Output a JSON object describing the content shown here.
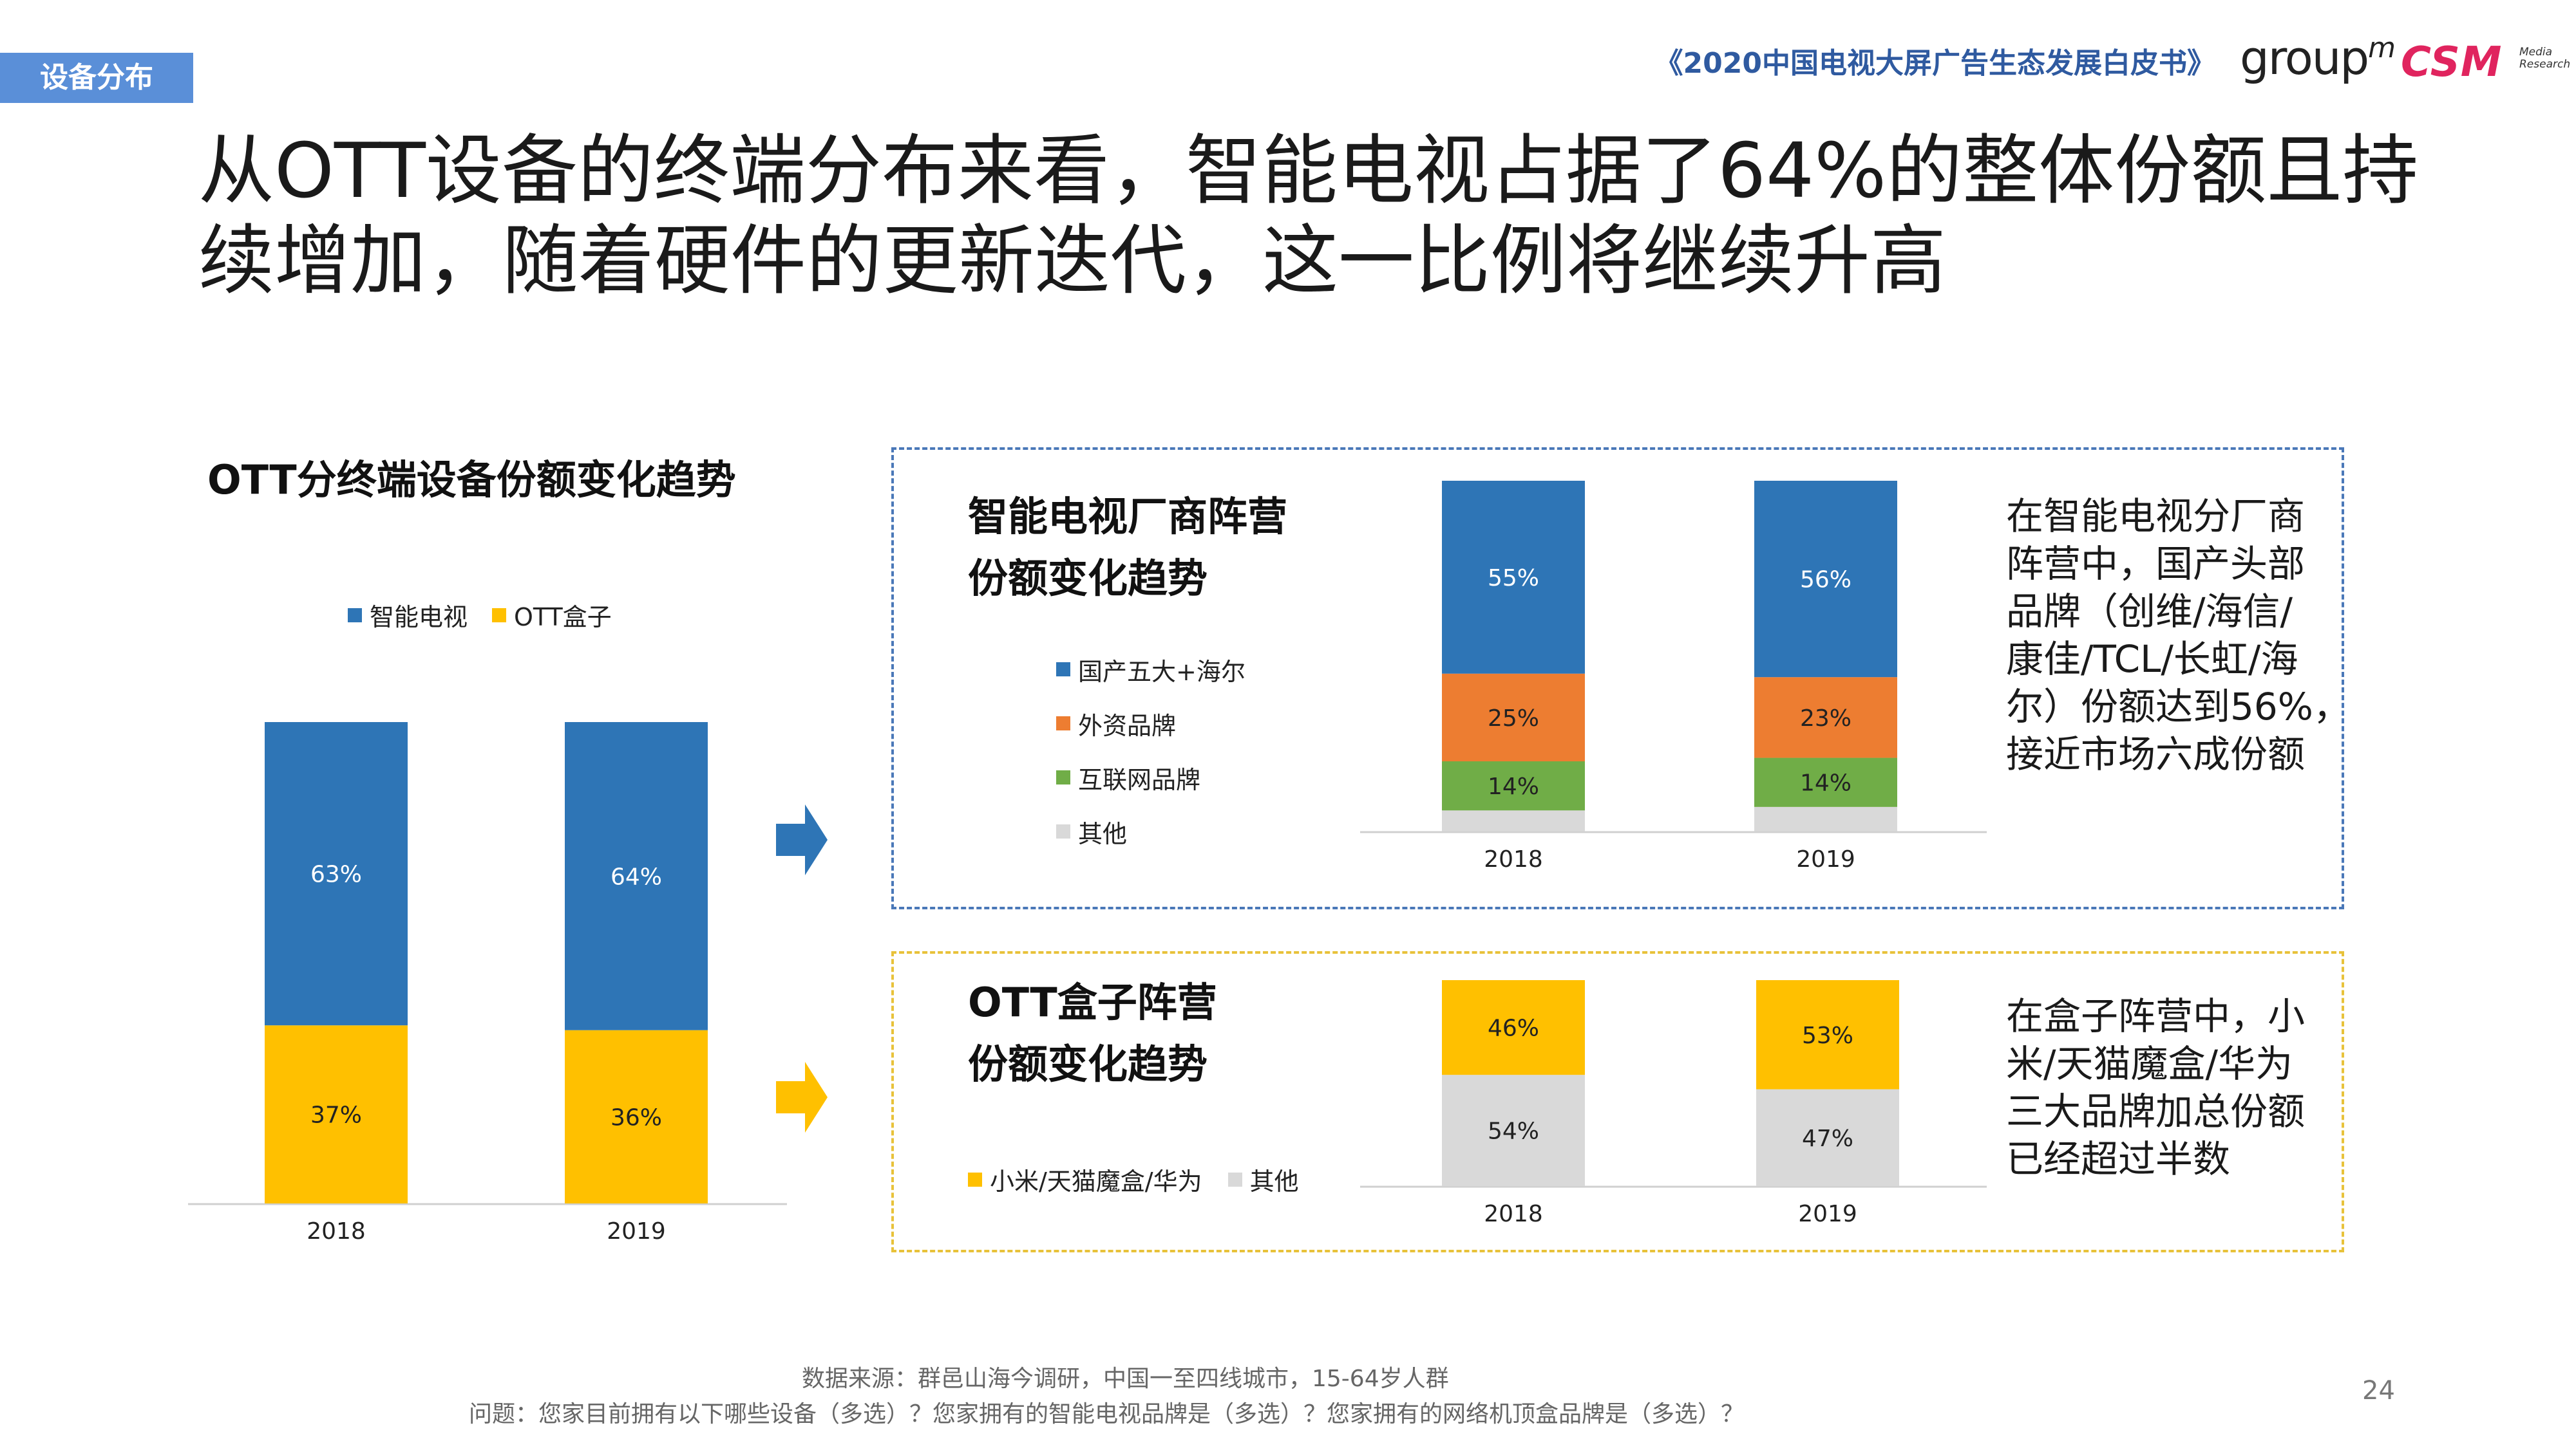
{
  "header": {
    "section_tag": "设备分布",
    "report_title": "《2020中国电视大屏广告生态发展白皮书》",
    "logo_groupm": "group",
    "logo_groupm_m": "m",
    "logo_csm": "CSM",
    "logo_csm_sub1": "Media",
    "logo_csm_sub2": "Research"
  },
  "headline_line1": "从OTT设备的终端分布来看，智能电视占据了64%的整体份额且持",
  "headline_line2": "续增加，随着硬件的更新迭代，这一比例将继续升高",
  "colors": {
    "blue": "#2e75b6",
    "yellow": "#ffc000",
    "orange": "#ed7d31",
    "green": "#70ad47",
    "gray": "#d9d9d9",
    "arrow_blue": "#2e75b6",
    "arrow_yellow": "#ffc000"
  },
  "chart_data": [
    {
      "type": "bar",
      "stacked": true,
      "title": "OTT分终端设备份额变化趋势",
      "categories": [
        "2018",
        "2019"
      ],
      "series": [
        {
          "name": "OTT盒子",
          "values": [
            37,
            36
          ],
          "labels": [
            "37%",
            "36%"
          ]
        },
        {
          "name": "智能电视",
          "values": [
            63,
            64
          ],
          "labels": [
            "63%",
            "64%"
          ]
        }
      ],
      "ylim": [
        0,
        100
      ],
      "legend": "top"
    },
    {
      "type": "bar",
      "stacked": true,
      "title": "智能电视厂商阵营",
      "title2": "份额变化趋势",
      "categories": [
        "2018",
        "2019"
      ],
      "series": [
        {
          "name": "其他",
          "values": [
            6,
            7
          ],
          "labels": [
            "",
            ""
          ]
        },
        {
          "name": "互联网品牌",
          "values": [
            14,
            14
          ],
          "labels": [
            "14%",
            "14%"
          ]
        },
        {
          "name": "外资品牌",
          "values": [
            25,
            23
          ],
          "labels": [
            "25%",
            "23%"
          ]
        },
        {
          "name": "国产五大+海尔",
          "values": [
            55,
            56
          ],
          "labels": [
            "55%",
            "56%"
          ]
        }
      ],
      "legend_order": [
        "国产五大+海尔",
        "外资品牌",
        "互联网品牌",
        "其他"
      ],
      "ylim": [
        0,
        100
      ],
      "legend": "left"
    },
    {
      "type": "bar",
      "stacked": true,
      "title": "OTT盒子阵营",
      "title2": "份额变化趋势",
      "categories": [
        "2018",
        "2019"
      ],
      "series": [
        {
          "name": "其他",
          "values": [
            54,
            47
          ],
          "labels": [
            "54%",
            "47%"
          ]
        },
        {
          "name": "小米/天猫魔盒/华为",
          "values": [
            46,
            53
          ],
          "labels": [
            "46%",
            "53%"
          ]
        }
      ],
      "legend_order": [
        "小米/天猫魔盒/华为",
        "其他"
      ],
      "ylim": [
        0,
        100
      ],
      "legend": "bottom-left"
    }
  ],
  "notes": {
    "tv": [
      "在智能电视分厂商",
      "阵营中，国产头部",
      "品牌（创维/海信/",
      "康佳/TCL/长虹/海",
      "尔）份额达到56%，",
      "接近市场六成份额"
    ],
    "box": [
      "在盒子阵营中，小",
      "米/天猫魔盒/华为",
      "三大品牌加总份额",
      "已经超过半数"
    ]
  },
  "footer": {
    "source": "数据来源：群邑山海今调研，中国一至四线城市，15-64岁人群",
    "question": "问题：您家目前拥有以下哪些设备（多选）？您家拥有的智能电视品牌是（多选）？您家拥有的网络机顶盒品牌是（多选）？",
    "page": "24"
  }
}
